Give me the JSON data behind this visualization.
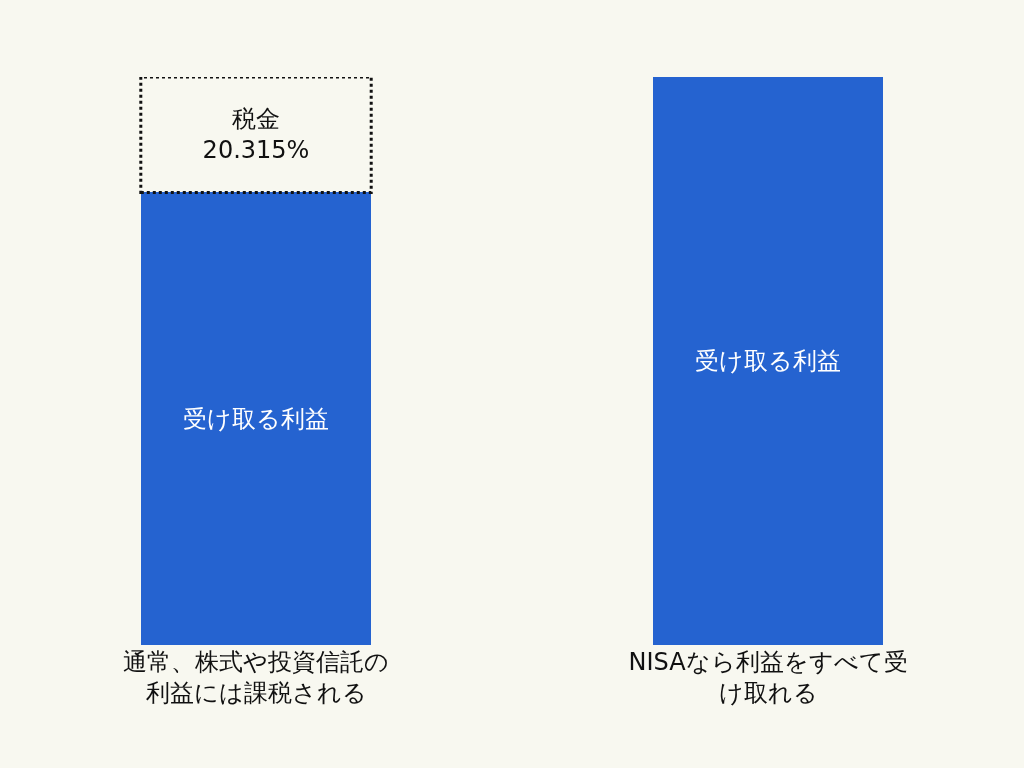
{
  "chart_data": {
    "type": "bar",
    "stacked": true,
    "ylim": [
      0,
      100
    ],
    "tick_labels": "x",
    "categories": [
      "通常、株式や投資信託の利益には課税される",
      "NISAなら利益をすべて受け取れる"
    ],
    "series": [
      {
        "color": "#2563d0",
        "values": [
          79.685,
          100
        ],
        "value_labels": [
          "受け取る利益",
          "受け取る利益"
        ]
      },
      {
        "color": "#f8f8f0",
        "line_style": "dotted",
        "values": [
          20.315,
          null
        ],
        "value_labels": [
          "税金\n20.315%",
          null
        ]
      }
    ]
  }
}
